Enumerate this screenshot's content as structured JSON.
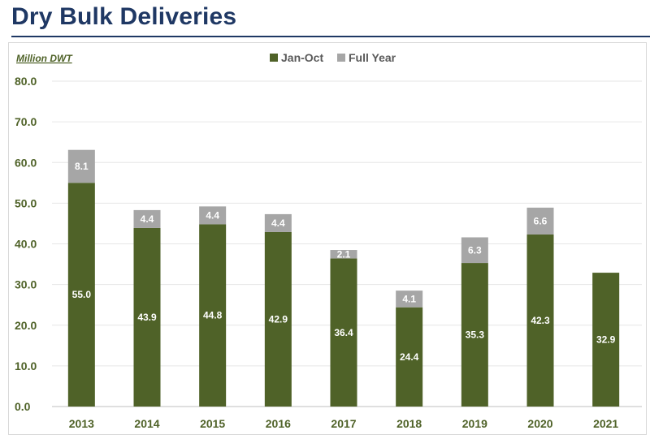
{
  "title": "Dry Bulk Deliveries",
  "unit_label": "Million DWT",
  "colors": {
    "jan_oct": "#4f6228",
    "full_year": "#a6a6a6",
    "axis_text": "#4f6228",
    "title": "#1f3864"
  },
  "chart_data": {
    "type": "bar",
    "stacked": true,
    "categories": [
      "2013",
      "2014",
      "2015",
      "2016",
      "2017",
      "2018",
      "2019",
      "2020",
      "2021"
    ],
    "series": [
      {
        "name": "Jan-Oct",
        "values": [
          55.0,
          43.9,
          44.8,
          42.9,
          36.4,
          24.4,
          35.3,
          42.3,
          32.9
        ]
      },
      {
        "name": "Full Year",
        "values": [
          8.1,
          4.4,
          4.4,
          4.4,
          2.1,
          4.1,
          6.3,
          6.6,
          null
        ]
      }
    ],
    "yticks": [
      "0.0",
      "10.0",
      "20.0",
      "30.0",
      "40.0",
      "50.0",
      "60.0",
      "70.0",
      "80.0"
    ],
    "ylim": [
      0,
      80
    ],
    "grid": true,
    "legend": "top-center"
  }
}
